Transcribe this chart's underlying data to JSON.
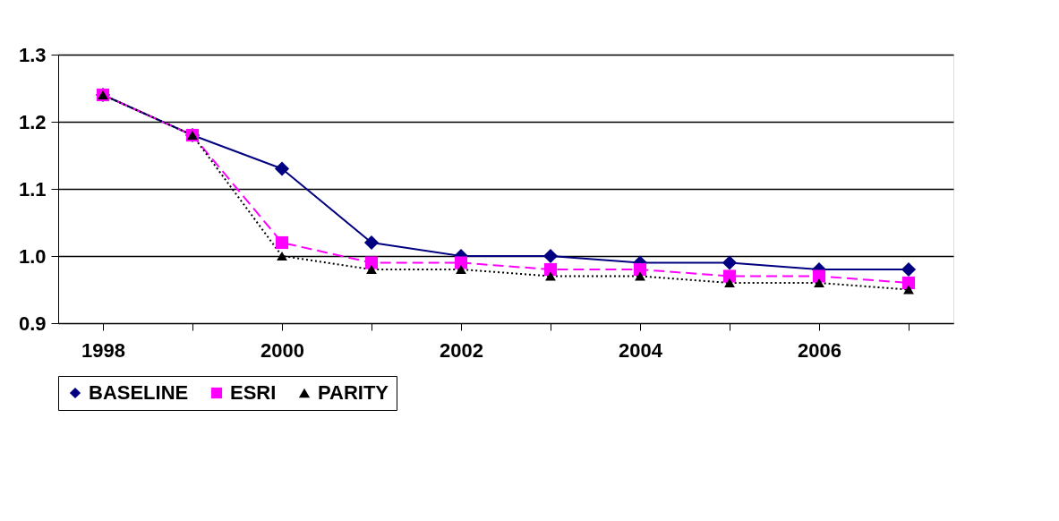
{
  "chart_data": {
    "type": "line",
    "categories": [
      "1998",
      null,
      "2000",
      null,
      "2002",
      null,
      "2004",
      null,
      "2006",
      null
    ],
    "series": [
      {
        "name": "BASELINE",
        "color": "#000080",
        "marker": "diamond",
        "line_style": "solid",
        "values": [
          1.24,
          1.18,
          1.13,
          1.02,
          1.0,
          1.0,
          0.99,
          0.99,
          0.98,
          0.98
        ]
      },
      {
        "name": "ESRI",
        "color": "#ff00ff",
        "marker": "square",
        "line_style": "dashed",
        "values": [
          1.24,
          1.18,
          1.02,
          0.99,
          0.99,
          0.98,
          0.98,
          0.97,
          0.97,
          0.96
        ]
      },
      {
        "name": "PARITY",
        "color": "#000000",
        "marker": "triangle",
        "line_style": "dotted",
        "values": [
          1.24,
          1.18,
          1.0,
          0.98,
          0.98,
          0.97,
          0.97,
          0.96,
          0.96,
          0.95
        ]
      }
    ],
    "ylim": [
      0.9,
      1.3
    ],
    "yticks": [
      0.9,
      {
        "value": 1.0,
        "label": "1.0"
      },
      1.1,
      1.2,
      1.3
    ],
    "grid": "y",
    "legend": "bottom"
  }
}
